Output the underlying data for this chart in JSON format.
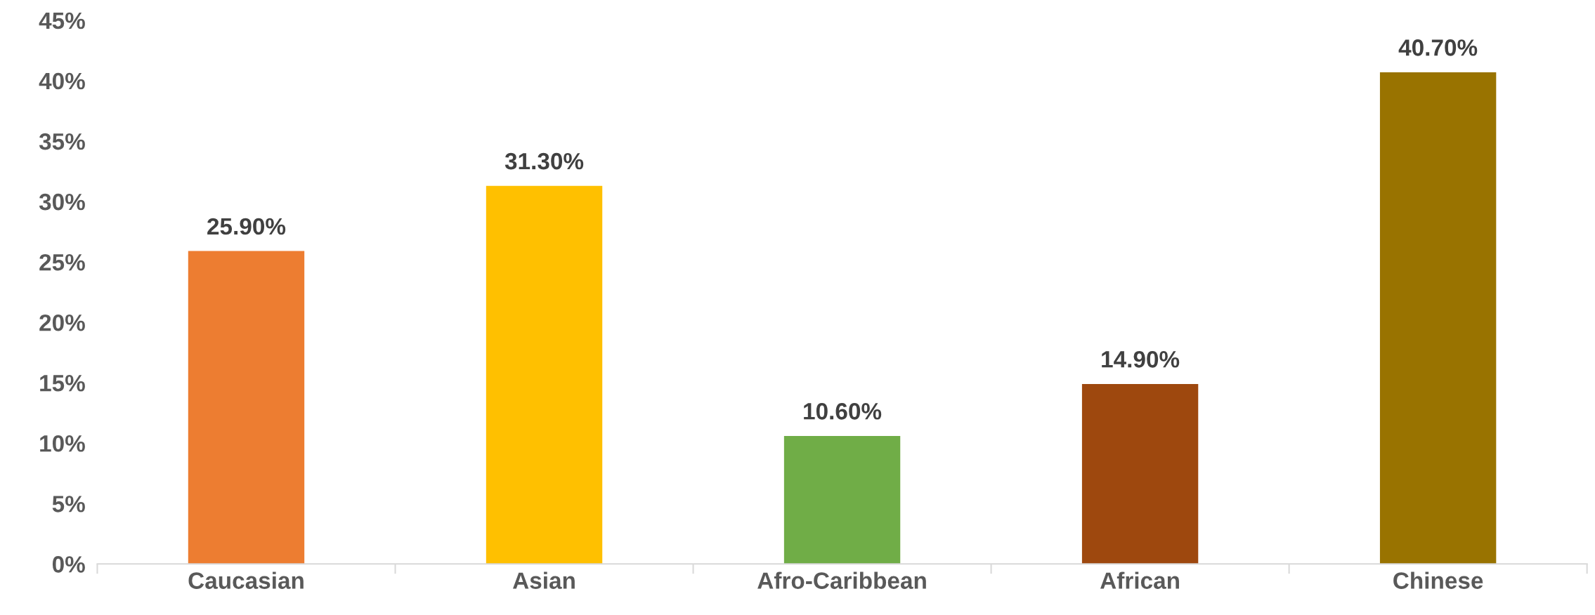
{
  "chart_data": {
    "type": "bar",
    "categories": [
      "Caucasian",
      "Asian",
      "Afro-Caribbean",
      "African",
      "Chinese"
    ],
    "values": [
      25.9,
      31.3,
      10.6,
      14.9,
      40.7
    ],
    "colors": [
      "#ed7d31",
      "#ffc000",
      "#70ad47",
      "#9e480e",
      "#997300"
    ],
    "value_labels": [
      "25.90%",
      "31.30%",
      "10.60%",
      "14.90%",
      "40.70%"
    ],
    "ylim": [
      0,
      45
    ],
    "yticks": [
      {
        "value": 0,
        "label": "0%"
      },
      {
        "value": 5,
        "label": "5%"
      },
      {
        "value": 10,
        "label": "10%"
      },
      {
        "value": 15,
        "label": "15%"
      },
      {
        "value": 20,
        "label": "20%"
      },
      {
        "value": 25,
        "label": "25%"
      },
      {
        "value": 30,
        "label": "30%"
      },
      {
        "value": 35,
        "label": "35%"
      },
      {
        "value": 40,
        "label": "40%"
      },
      {
        "value": 45,
        "label": "45%"
      }
    ],
    "grid": false,
    "legend": false
  }
}
